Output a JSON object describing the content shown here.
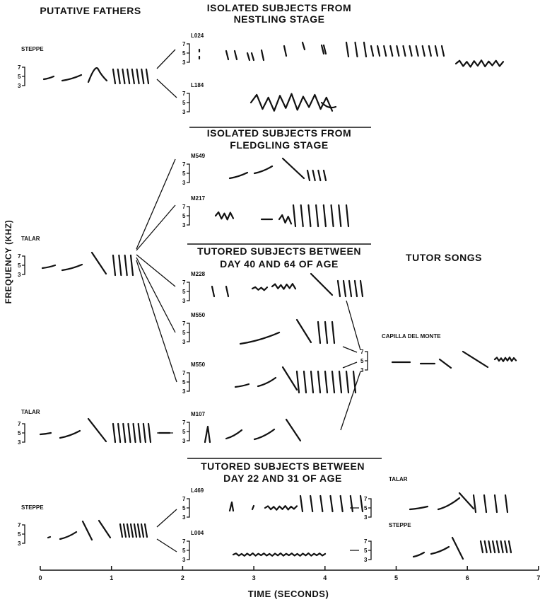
{
  "y_axis_label": "FREQUENCY (KHZ)",
  "scale_labels": [
    "7",
    "5",
    "3"
  ],
  "headings": {
    "fathers": "PUTATIVE FATHERS",
    "nestling": [
      "ISOLATED SUBJECTS FROM",
      "NESTLING STAGE"
    ],
    "fledgling": [
      "ISOLATED SUBJECTS FROM",
      "FLEDGLING STAGE"
    ],
    "tutored_40_64": [
      "TUTORED SUBJECTS BETWEEN",
      "DAY 40 AND 64 OF AGE"
    ],
    "tutor_songs": "TUTOR SONGS",
    "tutored_22_31": [
      "TUTORED SUBJECTS BETWEEN",
      "DAY 22 AND 31 OF AGE"
    ]
  },
  "fathers": [
    "STEPPE",
    "TALAR",
    "TALAR",
    "STEPPE"
  ],
  "subjects": [
    "L024",
    "L184",
    "M549",
    "M217",
    "M228",
    "M550",
    "M550",
    "M107",
    "L469",
    "L004"
  ],
  "tutors": [
    "CAPILLA DEL MONTE",
    "TALAR",
    "STEPPE"
  ],
  "time_axis": {
    "label": "TIME (SECONDS)",
    "ticks": [
      0,
      1,
      2,
      3,
      4,
      5,
      6,
      7
    ]
  }
}
